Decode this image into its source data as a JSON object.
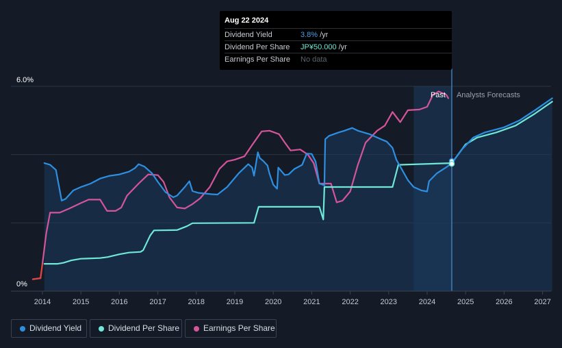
{
  "tooltip": {
    "date": "Aug 22 2024",
    "rows": [
      {
        "label": "Dividend Yield",
        "value": "3.8%",
        "unit": "/yr",
        "color": "#4d9fe8"
      },
      {
        "label": "Dividend Per Share",
        "value": "JP¥50.000",
        "unit": "/yr",
        "color": "#6fe8d8"
      },
      {
        "label": "Earnings Per Share",
        "value": "No data",
        "unit": "",
        "color": "#5d636e"
      }
    ]
  },
  "region_labels": {
    "past": "Past",
    "forecast": "Analysts Forecasts"
  },
  "legend": [
    {
      "label": "Dividend Yield",
      "color": "#2e8fe0"
    },
    {
      "label": "Dividend Per Share",
      "color": "#6fe8d8"
    },
    {
      "label": "Earnings Per Share",
      "color": "#d5559a"
    }
  ],
  "chart_data": {
    "type": "line",
    "title": "",
    "xlabel": "",
    "ylabel": "",
    "x_ticks": [
      "2014",
      "2015",
      "2016",
      "2017",
      "2018",
      "2019",
      "2020",
      "2021",
      "2022",
      "2023",
      "2024",
      "2025",
      "2026",
      "2027"
    ],
    "y_tick_labels": [
      {
        "value": 6,
        "label": "6.0%"
      },
      {
        "value": 0,
        "label": "0%"
      }
    ],
    "xlim": [
      2013.0,
      2027.25
    ],
    "ylim": [
      0,
      6
    ],
    "past_region": [
      2023.65,
      2024.64
    ],
    "current_date": 2024.64,
    "series": [
      {
        "name": "Dividend Yield",
        "color": "#2e8fe0",
        "fill": true,
        "points": [
          [
            2014.05,
            3.75
          ],
          [
            2014.2,
            3.7
          ],
          [
            2014.35,
            3.55
          ],
          [
            2014.5,
            2.65
          ],
          [
            2014.6,
            2.7
          ],
          [
            2014.8,
            2.95
          ],
          [
            2015.0,
            3.05
          ],
          [
            2015.25,
            3.15
          ],
          [
            2015.5,
            3.3
          ],
          [
            2015.75,
            3.38
          ],
          [
            2016.0,
            3.42
          ],
          [
            2016.25,
            3.5
          ],
          [
            2016.4,
            3.6
          ],
          [
            2016.5,
            3.72
          ],
          [
            2016.65,
            3.65
          ],
          [
            2016.85,
            3.45
          ],
          [
            2017.0,
            3.2
          ],
          [
            2017.2,
            2.9
          ],
          [
            2017.4,
            2.75
          ],
          [
            2017.5,
            2.8
          ],
          [
            2017.7,
            3.05
          ],
          [
            2017.82,
            3.22
          ],
          [
            2017.9,
            2.93
          ],
          [
            2018.05,
            2.88
          ],
          [
            2018.4,
            2.84
          ],
          [
            2018.55,
            2.83
          ],
          [
            2018.8,
            3.05
          ],
          [
            2019.1,
            3.45
          ],
          [
            2019.35,
            3.72
          ],
          [
            2019.45,
            3.62
          ],
          [
            2019.5,
            3.38
          ],
          [
            2019.6,
            4.07
          ],
          [
            2019.65,
            3.9
          ],
          [
            2019.75,
            3.8
          ],
          [
            2019.85,
            3.68
          ],
          [
            2019.9,
            3.45
          ],
          [
            2020.0,
            3.12
          ],
          [
            2020.1,
            3.0
          ],
          [
            2020.13,
            3.62
          ],
          [
            2020.3,
            3.4
          ],
          [
            2020.4,
            3.42
          ],
          [
            2020.55,
            3.58
          ],
          [
            2020.75,
            3.7
          ],
          [
            2020.87,
            4.03
          ],
          [
            2021.0,
            4.02
          ],
          [
            2021.1,
            3.8
          ],
          [
            2021.2,
            3.15
          ],
          [
            2021.33,
            3.1
          ],
          [
            2021.35,
            4.45
          ],
          [
            2021.45,
            4.55
          ],
          [
            2021.7,
            4.65
          ],
          [
            2021.85,
            4.7
          ],
          [
            2022.05,
            4.78
          ],
          [
            2022.2,
            4.7
          ],
          [
            2022.5,
            4.6
          ],
          [
            2022.8,
            4.45
          ],
          [
            2022.95,
            4.38
          ],
          [
            2023.1,
            4.2
          ],
          [
            2023.2,
            3.85
          ],
          [
            2023.35,
            3.55
          ],
          [
            2023.5,
            3.25
          ],
          [
            2023.65,
            3.05
          ],
          [
            2023.85,
            2.95
          ],
          [
            2024.0,
            2.92
          ],
          [
            2024.05,
            3.22
          ],
          [
            2024.25,
            3.45
          ],
          [
            2024.5,
            3.63
          ],
          [
            2024.64,
            3.75
          ],
          [
            2024.9,
            4.15
          ],
          [
            2025.2,
            4.5
          ],
          [
            2025.5,
            4.65
          ],
          [
            2026.0,
            4.8
          ],
          [
            2026.4,
            5.0
          ],
          [
            2026.8,
            5.3
          ],
          [
            2027.25,
            5.65
          ]
        ]
      },
      {
        "name": "Dividend Per Share",
        "color": "#6fe8d8",
        "fill": false,
        "points": [
          [
            2014.05,
            0.8
          ],
          [
            2014.4,
            0.8
          ],
          [
            2014.55,
            0.83
          ],
          [
            2014.75,
            0.9
          ],
          [
            2015.0,
            0.95
          ],
          [
            2015.5,
            0.97
          ],
          [
            2015.7,
            1.0
          ],
          [
            2016.0,
            1.08
          ],
          [
            2016.25,
            1.13
          ],
          [
            2016.55,
            1.15
          ],
          [
            2016.62,
            1.2
          ],
          [
            2016.8,
            1.63
          ],
          [
            2016.9,
            1.78
          ],
          [
            2017.5,
            1.79
          ],
          [
            2017.75,
            1.9
          ],
          [
            2017.9,
            1.99
          ],
          [
            2019.5,
            2.0
          ],
          [
            2019.62,
            2.47
          ],
          [
            2021.2,
            2.47
          ],
          [
            2021.3,
            2.1
          ],
          [
            2021.33,
            3.05
          ],
          [
            2022.0,
            3.05
          ],
          [
            2022.5,
            3.05
          ],
          [
            2023.1,
            3.05
          ],
          [
            2023.25,
            3.7
          ],
          [
            2024.64,
            3.75
          ],
          [
            2025.0,
            4.3
          ],
          [
            2025.3,
            4.5
          ],
          [
            2025.8,
            4.65
          ],
          [
            2026.3,
            4.85
          ],
          [
            2026.8,
            5.2
          ],
          [
            2027.25,
            5.55
          ]
        ]
      },
      {
        "name": "Earnings Per Share",
        "color": "#d5559a",
        "fill": false,
        "points": [
          [
            2013.75,
            0.35
          ],
          [
            2013.95,
            0.38
          ],
          [
            2014.0,
            0.8
          ],
          [
            2014.1,
            1.7
          ],
          [
            2014.2,
            2.3
          ],
          [
            2014.45,
            2.3
          ],
          [
            2014.7,
            2.42
          ],
          [
            2015.0,
            2.58
          ],
          [
            2015.2,
            2.68
          ],
          [
            2015.5,
            2.68
          ],
          [
            2015.68,
            2.35
          ],
          [
            2015.9,
            2.35
          ],
          [
            2016.05,
            2.45
          ],
          [
            2016.2,
            2.8
          ],
          [
            2016.5,
            3.15
          ],
          [
            2016.75,
            3.42
          ],
          [
            2017.0,
            3.4
          ],
          [
            2017.15,
            3.2
          ],
          [
            2017.3,
            2.75
          ],
          [
            2017.5,
            2.45
          ],
          [
            2017.7,
            2.42
          ],
          [
            2017.9,
            2.55
          ],
          [
            2018.1,
            2.72
          ],
          [
            2018.35,
            3.05
          ],
          [
            2018.6,
            3.58
          ],
          [
            2018.8,
            3.8
          ],
          [
            2019.0,
            3.85
          ],
          [
            2019.25,
            3.95
          ],
          [
            2019.45,
            4.28
          ],
          [
            2019.7,
            4.68
          ],
          [
            2019.9,
            4.7
          ],
          [
            2020.15,
            4.6
          ],
          [
            2020.3,
            4.35
          ],
          [
            2020.45,
            4.12
          ],
          [
            2020.7,
            4.15
          ],
          [
            2020.9,
            4.0
          ],
          [
            2021.05,
            3.75
          ],
          [
            2021.2,
            3.15
          ],
          [
            2021.5,
            3.15
          ],
          [
            2021.65,
            2.6
          ],
          [
            2021.8,
            2.65
          ],
          [
            2022.0,
            2.92
          ],
          [
            2022.2,
            3.7
          ],
          [
            2022.4,
            4.35
          ],
          [
            2022.7,
            4.7
          ],
          [
            2022.9,
            4.85
          ],
          [
            2023.1,
            5.25
          ],
          [
            2023.3,
            4.95
          ],
          [
            2023.5,
            5.3
          ],
          [
            2023.8,
            5.32
          ],
          [
            2024.0,
            5.4
          ],
          [
            2024.15,
            5.75
          ],
          [
            2024.3,
            5.85
          ],
          [
            2024.5,
            5.75
          ],
          [
            2024.55,
            5.65
          ]
        ]
      }
    ]
  }
}
